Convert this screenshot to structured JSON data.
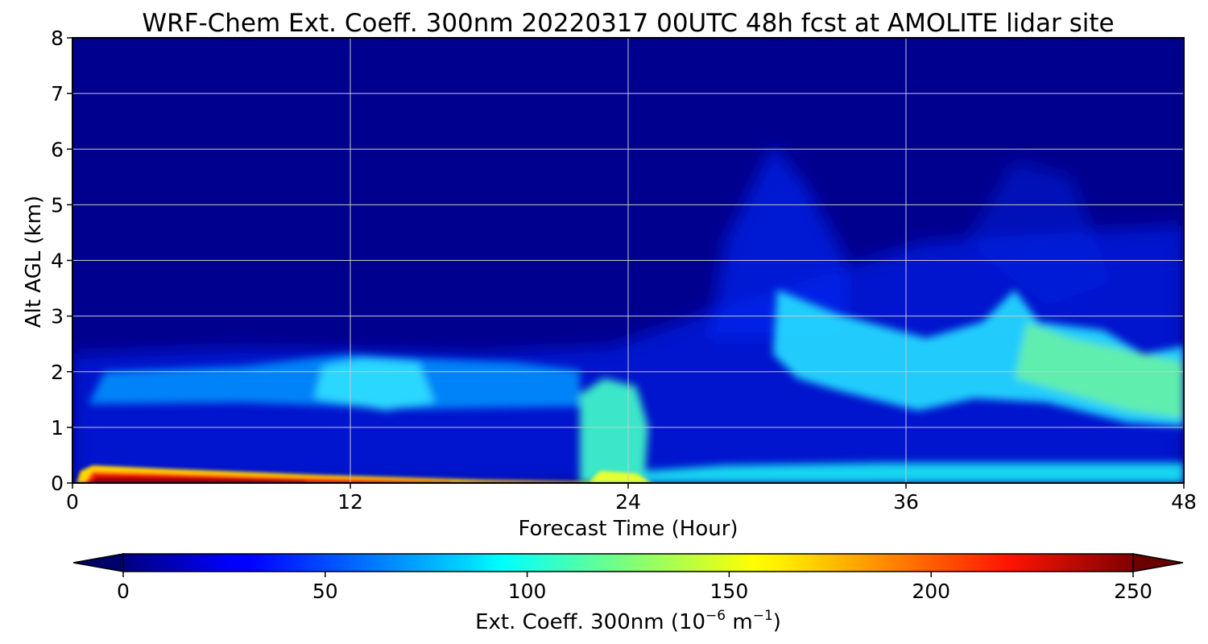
{
  "chart_data": {
    "type": "heatmap",
    "title": "WRF-Chem Ext. Coeff. 300nm  20220317 00UTC 48h fcst at AMOLITE lidar site",
    "xlabel": "Forecast Time (Hour)",
    "ylabel": "Alt AGL (km)",
    "xlim": [
      0,
      48
    ],
    "ylim": [
      0,
      8
    ],
    "x_ticks": [
      0,
      12,
      24,
      36,
      48
    ],
    "y_ticks": [
      0,
      1,
      2,
      3,
      4,
      5,
      6,
      7,
      8
    ],
    "grid": true,
    "colormap": "jet",
    "colorbar": {
      "orientation": "horizontal",
      "placement": "bottom",
      "min": 0,
      "max": 250,
      "ticks": [
        0,
        50,
        100,
        150,
        200,
        250
      ],
      "extend": "both",
      "label_main": "Ext. Coeff. 300nm  (10",
      "label_exp1": "−6",
      "label_mid": " m",
      "label_exp2": "−1",
      "label_end": ")"
    },
    "series": [
      {
        "x": [
          0,
          0.5,
          1,
          2,
          4,
          6,
          9,
          12,
          15,
          18,
          21,
          23,
          24,
          25,
          28,
          32,
          36,
          38,
          42,
          45,
          48
        ],
        "surface_layer_value": [
          20,
          150,
          230,
          220,
          230,
          200,
          190,
          170,
          130,
          110,
          100,
          140,
          150,
          130,
          100,
          100,
          95,
          95,
          90,
          90,
          90
        ]
      },
      {
        "x": [
          0,
          1,
          6,
          12,
          15,
          18,
          22,
          24,
          26,
          30,
          34,
          36,
          38,
          40,
          42,
          45,
          48
        ],
        "elevated_layer_center_km": [
          1.6,
          1.7,
          1.7,
          1.8,
          1.7,
          1.7,
          1.1,
          0.8,
          1.0,
          2.3,
          1.8,
          1.5,
          1.7,
          2.2,
          2.1,
          1.7,
          1.4
        ],
        "elevated_layer_value": [
          35,
          60,
          55,
          75,
          90,
          65,
          60,
          105,
          40,
          80,
          85,
          85,
          80,
          100,
          115,
          120,
          120
        ]
      }
    ]
  }
}
